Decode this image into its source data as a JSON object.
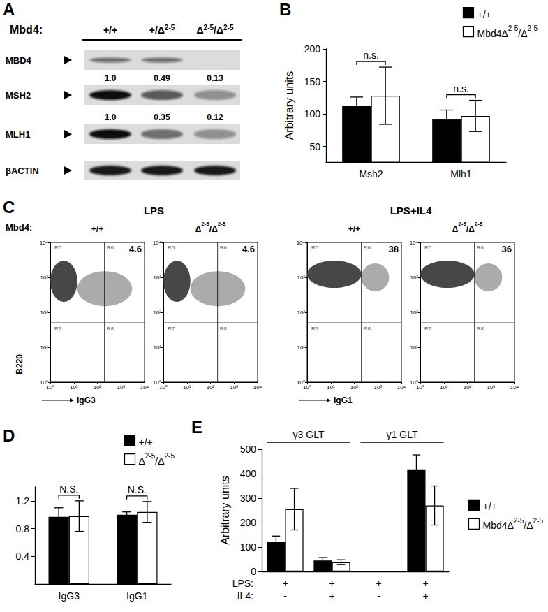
{
  "blot": {
    "panel": "A",
    "header": "Mbd4:",
    "genotypes": [
      "+/+",
      "+/Δ2-5",
      "Δ2-5/Δ2-5"
    ],
    "rows": [
      {
        "label": "MBD4",
        "bands": [
          true,
          true,
          false
        ]
      },
      {
        "label": "MSH2",
        "bands": [
          true,
          true,
          true
        ],
        "values": [
          1.0,
          0.49,
          0.13
        ],
        "value_labels": [
          "1.0",
          "0.49",
          "0.13"
        ]
      },
      {
        "label": "MLH1",
        "bands": [
          true,
          true,
          true
        ],
        "values": [
          1.0,
          0.35,
          0.12
        ],
        "value_labels": [
          "1.0",
          "0.35",
          "0.12"
        ]
      },
      {
        "label": "βACTIN",
        "bands": [
          true,
          true,
          true
        ]
      }
    ]
  },
  "chart_data": [
    {
      "type": "bar",
      "panel": "B",
      "categories": [
        "Msh2",
        "Mlh1"
      ],
      "ylabel": "Arbitrary units",
      "ylim": [
        26,
        200
      ],
      "yticks": [
        50,
        100,
        150,
        200
      ],
      "legend": "top-right",
      "series": [
        {
          "name": "+/+",
          "color": "#000000",
          "values": [
            112,
            92
          ],
          "errors": [
            14,
            14
          ]
        },
        {
          "name": "Mbd4Δ2-5/Δ2-5",
          "color": "#ffffff",
          "values": [
            128,
            97
          ],
          "errors": [
            44,
            24
          ]
        }
      ],
      "annotations": [
        "n.s.",
        "n.s."
      ]
    },
    {
      "type": "flow",
      "panel": "C",
      "header": "Mbd4:",
      "log": true,
      "xlim": [
        1,
        10000
      ],
      "ylim": [
        1,
        10000
      ],
      "xticks": [
        {
          "value": 1,
          "label": "10⁰"
        },
        {
          "value": 10,
          "label": "10¹"
        },
        {
          "value": 100,
          "label": "10²"
        },
        {
          "value": 1000,
          "label": "10³"
        },
        {
          "value": 10000,
          "label": "10⁴"
        }
      ],
      "yticks": [
        {
          "value": 1,
          "label": "10⁰"
        },
        {
          "value": 10,
          "label": "10¹"
        },
        {
          "value": 100,
          "label": "10²"
        },
        {
          "value": 1000,
          "label": "10³"
        },
        {
          "value": 10000,
          "label": "10⁴"
        }
      ],
      "regions": [
        "R5",
        "R6",
        "R7",
        "R8"
      ],
      "groups": [
        {
          "title": "LPS",
          "xlabel": "IgG3",
          "ylabel": "B220",
          "plots": [
            {
              "genotype": "+/+",
              "gate_x": 200,
              "gate_y": 50,
              "percent": 4.6,
              "populations": [
                {
                  "x": [
                    1,
                    14
                  ],
                  "y": [
                    200,
                    3000
                  ]
                },
                {
                  "x": [
                    14,
                    3000
                  ],
                  "y": [
                    150,
                    1500
                  ]
                }
              ]
            },
            {
              "genotype": "Δ2-5/Δ2-5",
              "gate_x": 200,
              "gate_y": 50,
              "percent": 4.6,
              "populations": [
                {
                  "x": [
                    1,
                    14
                  ],
                  "y": [
                    200,
                    3000
                  ]
                },
                {
                  "x": [
                    14,
                    3000
                  ],
                  "y": [
                    150,
                    1500
                  ]
                }
              ]
            }
          ]
        },
        {
          "title": "LPS+IL4",
          "xlabel": "IgG1",
          "plots": [
            {
              "genotype": "+/+",
              "gate_x": 200,
              "gate_y": 50,
              "percent": 38,
              "populations": [
                {
                  "x": [
                    1,
                    200
                  ],
                  "y": [
                    500,
                    3000
                  ]
                },
                {
                  "x": [
                    200,
                    3000
                  ],
                  "y": [
                    400,
                    2500
                  ]
                }
              ]
            },
            {
              "genotype": "Δ2-5/Δ2-5",
              "gate_x": 200,
              "gate_y": 50,
              "percent": 36,
              "populations": [
                {
                  "x": [
                    1,
                    200
                  ],
                  "y": [
                    500,
                    3000
                  ]
                },
                {
                  "x": [
                    200,
                    3000
                  ],
                  "y": [
                    400,
                    2500
                  ]
                }
              ]
            }
          ]
        }
      ]
    },
    {
      "type": "bar",
      "panel": "D",
      "categories": [
        "IgG3",
        "IgG1"
      ],
      "ylim": [
        0,
        1.4
      ],
      "yticks": [
        0.4,
        0.8,
        1.2
      ],
      "legend": "top-right",
      "series": [
        {
          "name": "+/+",
          "color": "#000000",
          "values": [
            0.97,
            1.0
          ],
          "errors": [
            0.13,
            0.04
          ]
        },
        {
          "name": "Δ2-5/Δ2-5",
          "color": "#ffffff",
          "values": [
            0.98,
            1.04
          ],
          "errors": [
            0.22,
            0.15
          ]
        }
      ],
      "annotations": [
        "N.S.",
        "N.S."
      ]
    },
    {
      "type": "bar",
      "panel": "E",
      "ylabel": "Arbitrary units",
      "ylim": [
        0,
        500
      ],
      "yticks": [
        0,
        100,
        200,
        300,
        400,
        500
      ],
      "legend": "right",
      "groups": [
        {
          "label": "γ3 GLT",
          "size": 2
        },
        {
          "label": "γ1 GLT",
          "size": 2
        }
      ],
      "x_rows": [
        {
          "label": "LPS:",
          "values": [
            "+",
            "+",
            "+",
            "+"
          ]
        },
        {
          "label": "IL4:",
          "values": [
            "-",
            "+",
            "-",
            "+"
          ]
        }
      ],
      "series": [
        {
          "name": "+/+",
          "color": "#000000",
          "values": [
            120,
            45,
            null,
            415
          ],
          "errors": [
            25,
            12,
            null,
            62
          ]
        },
        {
          "name": "Mbd4Δ2-5/Δ2-5",
          "color": "#ffffff",
          "values": [
            255,
            38,
            null,
            270
          ],
          "errors": [
            85,
            10,
            null,
            80
          ]
        }
      ]
    }
  ]
}
